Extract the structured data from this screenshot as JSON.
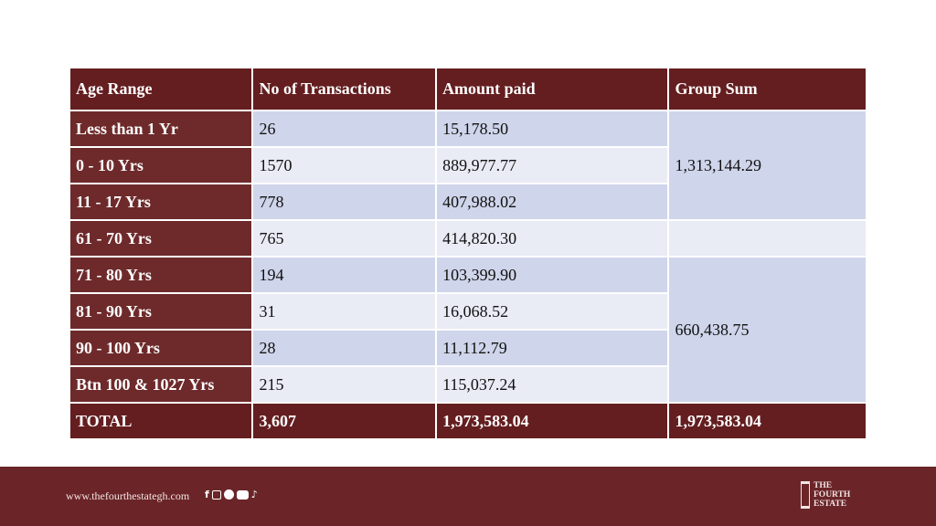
{
  "table": {
    "headers": [
      "Age Range",
      "No of Transactions",
      "Amount paid",
      "Group Sum"
    ],
    "rows": [
      {
        "age": "Less than 1 Yr",
        "count": "26",
        "amount": "15,178.50"
      },
      {
        "age": "0 - 10 Yrs",
        "count": "1570",
        "amount": "889,977.77"
      },
      {
        "age": "11 - 17 Yrs",
        "count": "778",
        "amount": "407,988.02"
      },
      {
        "age": "61 - 70 Yrs",
        "count": "765",
        "amount": "414,820.30"
      },
      {
        "age": "71 - 80 Yrs",
        "count": "194",
        "amount": "103,399.90"
      },
      {
        "age": "81 - 90 Yrs",
        "count": "31",
        "amount": "16,068.52"
      },
      {
        "age": "90 - 100 Yrs",
        "count": "28",
        "amount": "11,112.79"
      },
      {
        "age": "Btn 100 & 1027 Yrs",
        "count": "215",
        "amount": "115,037.24"
      }
    ],
    "group_sums": [
      "1,313,144.29",
      "",
      "660,438.75"
    ],
    "total": {
      "label": "TOTAL",
      "count": "3,607",
      "amount": "1,973,583.04",
      "group_sum": "1,973,583.04"
    }
  },
  "footer": {
    "url": "www.thefourthestategh.com",
    "social_icons": [
      "facebook-icon",
      "instagram-icon",
      "x-icon",
      "youtube-icon",
      "tiktok-icon"
    ],
    "logo_text": [
      "THE",
      "FOURTH",
      "ESTATE"
    ]
  },
  "colors": {
    "header": "#641e20",
    "first_column": "#6e2a2b",
    "row_odd": "#cfd5ea",
    "row_even": "#e9ebf5",
    "footer": "#6b2528"
  }
}
